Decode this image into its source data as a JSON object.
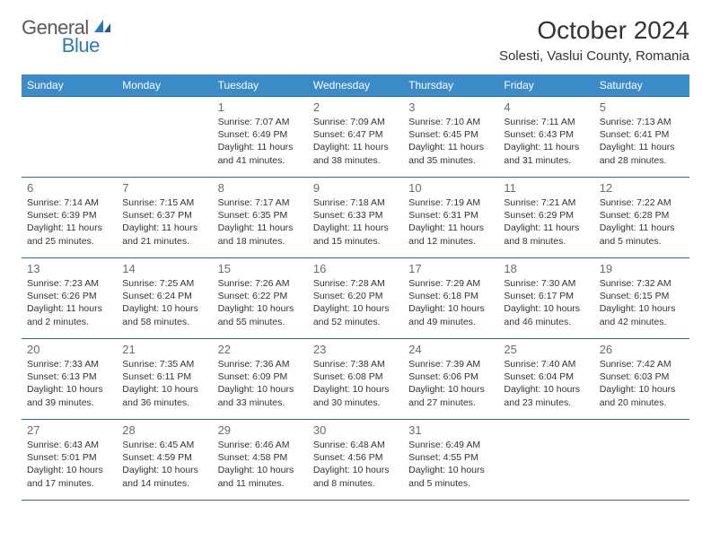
{
  "logo": {
    "text1": "General",
    "text2": "Blue"
  },
  "header": {
    "month_title": "October 2024",
    "location": "Solesti, Vaslui County, Romania"
  },
  "colors": {
    "header_bg": "#3b8bc9",
    "header_text": "#ffffff",
    "cell_border": "#2a6ea8",
    "day_num": "#6b6b6b",
    "body_text": "#333333",
    "logo_gray": "#5a5a5a",
    "logo_blue": "#2a7ab9"
  },
  "day_headers": [
    "Sunday",
    "Monday",
    "Tuesday",
    "Wednesday",
    "Thursday",
    "Friday",
    "Saturday"
  ],
  "weeks": [
    [
      null,
      null,
      {
        "n": "1",
        "sr": "7:07 AM",
        "ss": "6:49 PM",
        "dl": "11 hours and 41 minutes."
      },
      {
        "n": "2",
        "sr": "7:09 AM",
        "ss": "6:47 PM",
        "dl": "11 hours and 38 minutes."
      },
      {
        "n": "3",
        "sr": "7:10 AM",
        "ss": "6:45 PM",
        "dl": "11 hours and 35 minutes."
      },
      {
        "n": "4",
        "sr": "7:11 AM",
        "ss": "6:43 PM",
        "dl": "11 hours and 31 minutes."
      },
      {
        "n": "5",
        "sr": "7:13 AM",
        "ss": "6:41 PM",
        "dl": "11 hours and 28 minutes."
      }
    ],
    [
      {
        "n": "6",
        "sr": "7:14 AM",
        "ss": "6:39 PM",
        "dl": "11 hours and 25 minutes."
      },
      {
        "n": "7",
        "sr": "7:15 AM",
        "ss": "6:37 PM",
        "dl": "11 hours and 21 minutes."
      },
      {
        "n": "8",
        "sr": "7:17 AM",
        "ss": "6:35 PM",
        "dl": "11 hours and 18 minutes."
      },
      {
        "n": "9",
        "sr": "7:18 AM",
        "ss": "6:33 PM",
        "dl": "11 hours and 15 minutes."
      },
      {
        "n": "10",
        "sr": "7:19 AM",
        "ss": "6:31 PM",
        "dl": "11 hours and 12 minutes."
      },
      {
        "n": "11",
        "sr": "7:21 AM",
        "ss": "6:29 PM",
        "dl": "11 hours and 8 minutes."
      },
      {
        "n": "12",
        "sr": "7:22 AM",
        "ss": "6:28 PM",
        "dl": "11 hours and 5 minutes."
      }
    ],
    [
      {
        "n": "13",
        "sr": "7:23 AM",
        "ss": "6:26 PM",
        "dl": "11 hours and 2 minutes."
      },
      {
        "n": "14",
        "sr": "7:25 AM",
        "ss": "6:24 PM",
        "dl": "10 hours and 58 minutes."
      },
      {
        "n": "15",
        "sr": "7:26 AM",
        "ss": "6:22 PM",
        "dl": "10 hours and 55 minutes."
      },
      {
        "n": "16",
        "sr": "7:28 AM",
        "ss": "6:20 PM",
        "dl": "10 hours and 52 minutes."
      },
      {
        "n": "17",
        "sr": "7:29 AM",
        "ss": "6:18 PM",
        "dl": "10 hours and 49 minutes."
      },
      {
        "n": "18",
        "sr": "7:30 AM",
        "ss": "6:17 PM",
        "dl": "10 hours and 46 minutes."
      },
      {
        "n": "19",
        "sr": "7:32 AM",
        "ss": "6:15 PM",
        "dl": "10 hours and 42 minutes."
      }
    ],
    [
      {
        "n": "20",
        "sr": "7:33 AM",
        "ss": "6:13 PM",
        "dl": "10 hours and 39 minutes."
      },
      {
        "n": "21",
        "sr": "7:35 AM",
        "ss": "6:11 PM",
        "dl": "10 hours and 36 minutes."
      },
      {
        "n": "22",
        "sr": "7:36 AM",
        "ss": "6:09 PM",
        "dl": "10 hours and 33 minutes."
      },
      {
        "n": "23",
        "sr": "7:38 AM",
        "ss": "6:08 PM",
        "dl": "10 hours and 30 minutes."
      },
      {
        "n": "24",
        "sr": "7:39 AM",
        "ss": "6:06 PM",
        "dl": "10 hours and 27 minutes."
      },
      {
        "n": "25",
        "sr": "7:40 AM",
        "ss": "6:04 PM",
        "dl": "10 hours and 23 minutes."
      },
      {
        "n": "26",
        "sr": "7:42 AM",
        "ss": "6:03 PM",
        "dl": "10 hours and 20 minutes."
      }
    ],
    [
      {
        "n": "27",
        "sr": "6:43 AM",
        "ss": "5:01 PM",
        "dl": "10 hours and 17 minutes."
      },
      {
        "n": "28",
        "sr": "6:45 AM",
        "ss": "4:59 PM",
        "dl": "10 hours and 14 minutes."
      },
      {
        "n": "29",
        "sr": "6:46 AM",
        "ss": "4:58 PM",
        "dl": "10 hours and 11 minutes."
      },
      {
        "n": "30",
        "sr": "6:48 AM",
        "ss": "4:56 PM",
        "dl": "10 hours and 8 minutes."
      },
      {
        "n": "31",
        "sr": "6:49 AM",
        "ss": "4:55 PM",
        "dl": "10 hours and 5 minutes."
      },
      null,
      null
    ]
  ],
  "labels": {
    "sunrise": "Sunrise: ",
    "sunset": "Sunset: ",
    "daylight": "Daylight: "
  }
}
